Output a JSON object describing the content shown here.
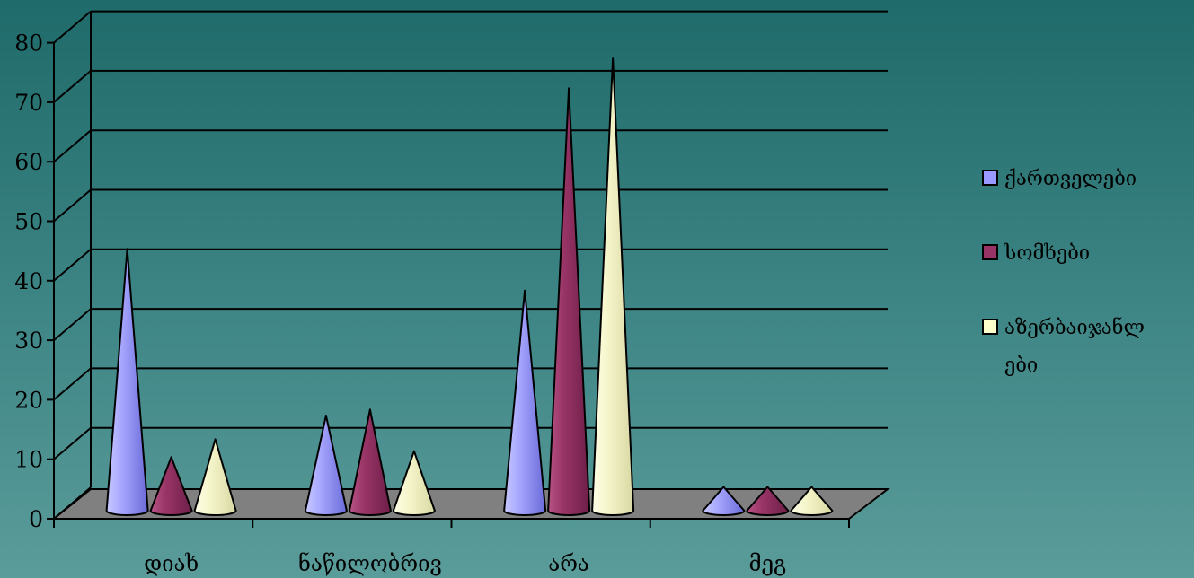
{
  "chart_data": {
    "type": "bar",
    "style": "3d-cone",
    "categories": [
      "დიახ",
      "ნაწილობრივ",
      "არა",
      "მეგ"
    ],
    "series": [
      {
        "name": "ქართველები",
        "values": [
          44,
          16,
          37,
          4
        ],
        "color": "#9999ff"
      },
      {
        "name": "სომხები",
        "values": [
          9,
          17,
          71,
          4
        ],
        "color": "#993366"
      },
      {
        "name": "აზერბაიჯანლ ები",
        "values": [
          12,
          10,
          76,
          4
        ],
        "color": "#ffffcc"
      }
    ],
    "y_ticks": [
      "0",
      "10",
      "20",
      "30",
      "40",
      "50",
      "60",
      "70",
      "80"
    ],
    "ylim": [
      0,
      85
    ],
    "grid": true,
    "legend_position": "right",
    "legend_lines": [
      [
        "ქართველები"
      ],
      [
        "სომხები"
      ],
      [
        "აზერბაიჯანლ",
        "ები"
      ]
    ],
    "colors": {
      "background_top": "#1f6a6a",
      "background_bottom": "#5a9c9a",
      "floor": "#808080",
      "gridline": "#000000"
    }
  }
}
